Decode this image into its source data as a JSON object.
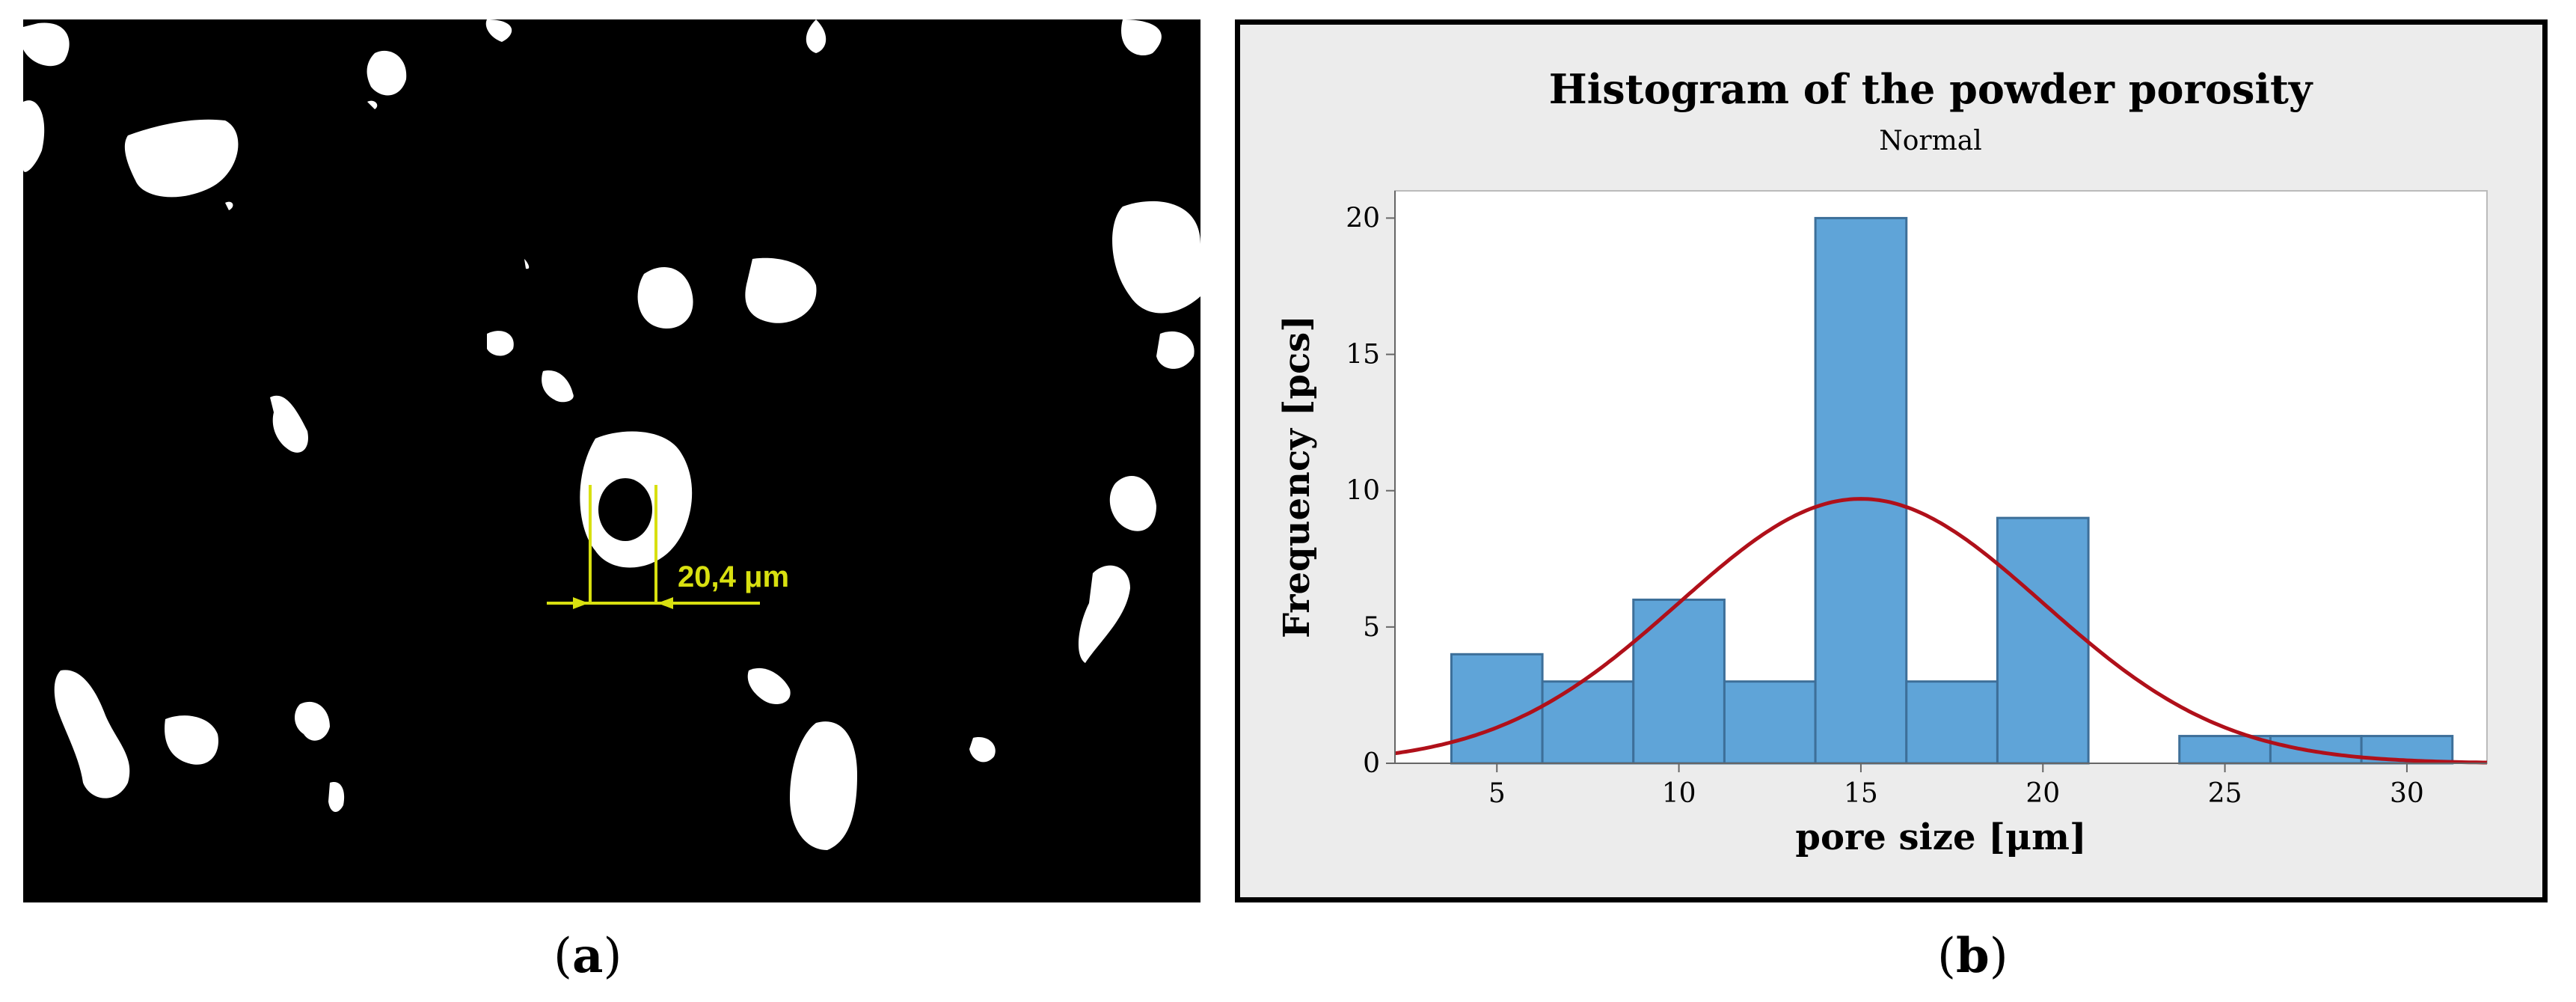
{
  "panel_a": {
    "measurement_label": "20,4 μm"
  },
  "panel_b": {
    "chart_data": {
      "type": "bar",
      "title": "Histogram of the powder porosity",
      "subtitle": "Normal",
      "xlabel": "pore size [μm]",
      "ylabel": "Frequency [pcs]",
      "xlim": [
        2.2,
        32.2
      ],
      "ylim": [
        0,
        21
      ],
      "xticks": [
        5,
        10,
        15,
        20,
        25,
        30
      ],
      "yticks": [
        0,
        5,
        10,
        15,
        20
      ],
      "bin_width": 2.5,
      "bins": [
        {
          "center": 5.0,
          "count": 4
        },
        {
          "center": 7.5,
          "count": 3
        },
        {
          "center": 10.0,
          "count": 6
        },
        {
          "center": 12.5,
          "count": 3
        },
        {
          "center": 15.0,
          "count": 20
        },
        {
          "center": 17.5,
          "count": 3
        },
        {
          "center": 20.0,
          "count": 9
        },
        {
          "center": 22.5,
          "count": 0
        },
        {
          "center": 25.0,
          "count": 1
        },
        {
          "center": 27.5,
          "count": 1
        },
        {
          "center": 30.0,
          "count": 1
        }
      ],
      "normal_fit": {
        "mean": 15.0,
        "std": 5.0,
        "peak": 9.7
      },
      "colors": {
        "bar_fill": "#5fa4d8",
        "bar_stroke": "#3d6f99",
        "curve": "#b0101a"
      }
    }
  },
  "captions": {
    "a_open": "(",
    "a_letter": "a",
    "a_close": ")",
    "b_open": "(",
    "b_letter": "b",
    "b_close": ")"
  }
}
